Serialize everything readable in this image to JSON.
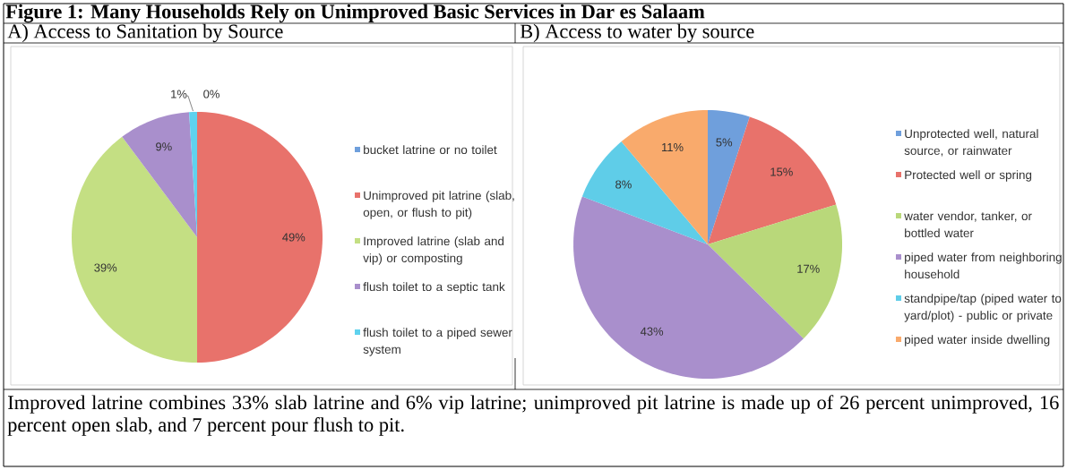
{
  "chart_data": [
    {
      "type": "pie",
      "title": "Figure 1: Many Households Rely on Unimproved Basic Services in Dar es Salaam",
      "subtitle": "A) Access to Sanitation by Source",
      "categories": [
        "bucket latrine or no toilet",
        "Unimproved pit latrine (slab, open, or flush to pit)",
        "Improved latrine (slab and vip) or composting",
        "flush toilet to a septic tank",
        "flush toilet to a piped sewer system"
      ],
      "values": [
        0,
        49,
        39,
        9,
        1
      ],
      "value_labels": [
        "0%",
        "49%",
        "39%",
        "9%",
        "1%"
      ],
      "colors": [
        "#6f9fdc",
        "#e8726b",
        "#c4df83",
        "#a98fcc",
        "#5fd2ee"
      ],
      "legend": "right",
      "annotations": [
        "Improved latrine combines 33% slab latrine and 6% vip latrine; unimproved pit latrine is made up of 26 percent unimproved, 16 percent open slab, and 7 percent pour flush to pit."
      ]
    },
    {
      "type": "pie",
      "subtitle": "B) Access to water by source",
      "categories": [
        "Unprotected well, natural source, or rainwater",
        "Protected well or spring",
        "water vendor, tanker, or bottled water",
        "piped water from neighboring household",
        "standpipe/tap (piped water to yard/plot) - public or private",
        "piped water inside dwelling"
      ],
      "values": [
        5,
        15,
        17,
        43,
        8,
        11
      ],
      "value_labels": [
        "5%",
        "15%",
        "17%",
        "43%",
        "8%",
        "11%"
      ],
      "colors": [
        "#6f9fdc",
        "#e8726b",
        "#b9d87a",
        "#a98fcc",
        "#5fcde8",
        "#f9aa6c"
      ],
      "legend": "right"
    }
  ]
}
